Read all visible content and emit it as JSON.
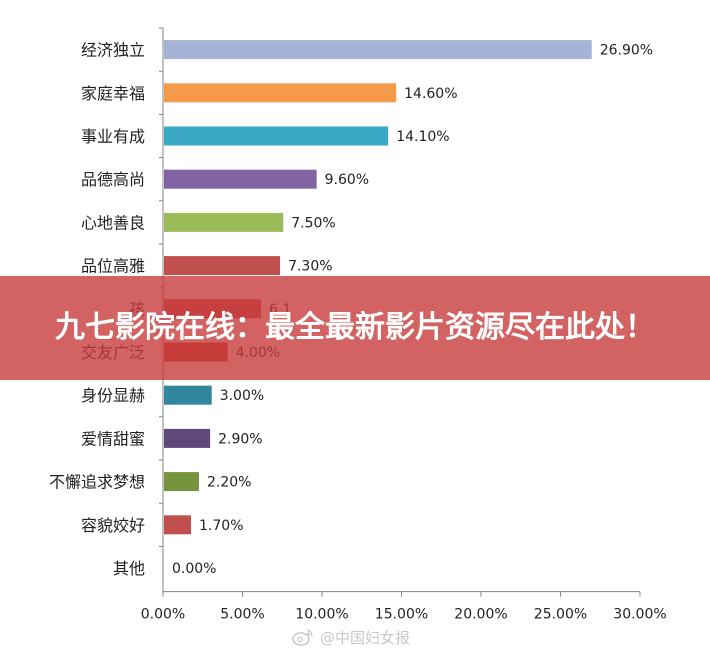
{
  "chart_data": {
    "type": "bar",
    "orientation": "horizontal",
    "categories": [
      "经济独立",
      "家庭幸福",
      "事业有成",
      "品德高尚",
      "心地善良",
      "品位高雅",
      "孩",
      "交友广泛",
      "身份显赫",
      "爱情甜蜜",
      "不懈追求梦想",
      "容貌姣好",
      "其他"
    ],
    "values": [
      26.9,
      14.6,
      14.1,
      9.6,
      7.5,
      7.3,
      6.1,
      4.0,
      3.0,
      2.9,
      2.2,
      1.7,
      0.0
    ],
    "value_labels": [
      "26.90%",
      "14.60%",
      "14.10%",
      "9.60%",
      "7.50%",
      "7.30%",
      "6.1",
      "4.00%",
      "3.00%",
      "2.90%",
      "2.20%",
      "1.70%",
      "0.00%"
    ],
    "colors": [
      "#a5b3d6",
      "#f59a4a",
      "#3ba8c6",
      "#8064a2",
      "#9bbb59",
      "#c0504d",
      "#c0504d",
      "#c0392b",
      "#31859c",
      "#5f497a",
      "#77933c",
      "#c0504d",
      "#c0504d"
    ],
    "xlim": [
      0,
      30
    ],
    "x_ticks": [
      "0.00%",
      "5.00%",
      "10.00%",
      "15.00%",
      "20.00%",
      "25.00%",
      "30.00%"
    ],
    "grid": false
  },
  "overlay": {
    "banner_text": "九七影院在线：最全最新影片资源尽在此处！",
    "banner_color": "#c83c3c"
  },
  "watermark": {
    "text": "@中国妇女报",
    "icon": "weibo-icon"
  }
}
